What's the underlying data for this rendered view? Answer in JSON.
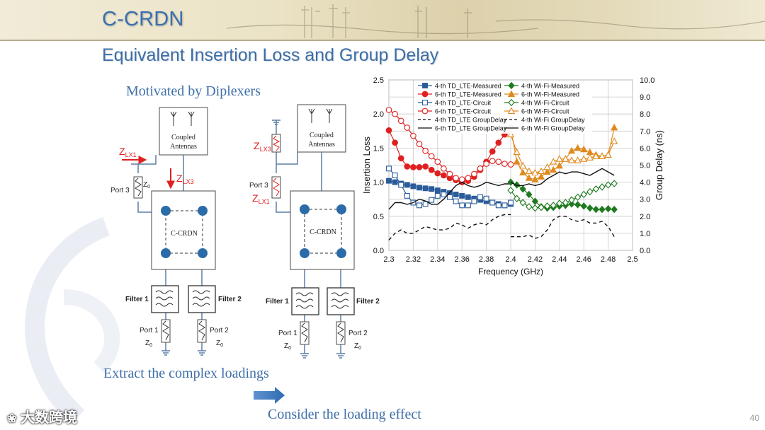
{
  "slide": {
    "title": "C-CRDN",
    "subtitle": "Equivalent Insertion Loss and Group Delay",
    "page_number": "40",
    "watermark_brand": "大数跨境"
  },
  "notes": {
    "motivated": "Motivated by Diplexers",
    "extract": "Extract the complex loadings",
    "consider": "Consider the loading effect"
  },
  "diagram_left": {
    "antenna_label_1": "Coupled",
    "antenna_label_2": "Antennas",
    "zlx1": "Z",
    "zlx1_sub": "LX1",
    "zlx3": "Z",
    "zlx3_sub": "LX3",
    "port3": "Port 3",
    "z0": "Z",
    "z0_sub": "0",
    "core_label": "C-CRDN",
    "filter1": "Filter 1",
    "filter2": "Filter 2",
    "port1": "Port 1",
    "port2": "Port 2"
  },
  "diagram_right": {
    "antenna_label_1": "Coupled",
    "antenna_label_2": "Antennas",
    "zlx3": "Z",
    "zlx3_sub": "LX3",
    "zlx1": "Z",
    "zlx1_sub": "LX1",
    "port3": "Port 3",
    "core_label": "C-CRDN",
    "filter1": "Filter 1",
    "filter2": "Filter 2",
    "port1": "Port 1",
    "port2": "Port 2",
    "z0": "Z",
    "z0_sub": "0"
  },
  "colors": {
    "accent_blue": "#3b6ea8",
    "red": "#e02020",
    "green": "#1f7a1f",
    "orange": "#e08a1e",
    "node_blue": "#2b6ca8",
    "line_blue": "#5b7fa6"
  },
  "chart_data": {
    "type": "line",
    "xlabel": "Frequency (GHz)",
    "ylabel": "Insertion Loss",
    "y2label": "Group Delay (ns)",
    "xlim": [
      2.3,
      2.5
    ],
    "ylim": [
      0,
      2.5
    ],
    "y2lim": [
      0,
      10
    ],
    "xticks": [
      "2.3",
      "2.32",
      "2.34",
      "2.36",
      "2.38",
      "2.4",
      "2.42",
      "2.44",
      "2.46",
      "2.48",
      "2.5"
    ],
    "yticks": [
      "0.0",
      "0.5",
      "1.0",
      "1.5",
      "2.0",
      "2.5"
    ],
    "y2ticks": [
      "0.0",
      "1.0",
      "2.0",
      "3.0",
      "4.0",
      "5.0",
      "6.0",
      "7.0",
      "8.0",
      "9.0",
      "10.0"
    ],
    "grid": true,
    "legend_position": "top",
    "series": [
      {
        "name": "4-th TD_LTE-Measured",
        "axis": "left",
        "color": "#2a5c9a",
        "marker": "square-filled",
        "x": [
          2.3,
          2.305,
          2.31,
          2.315,
          2.32,
          2.325,
          2.33,
          2.335,
          2.34,
          2.345,
          2.35,
          2.355,
          2.36,
          2.365,
          2.37,
          2.375,
          2.38,
          2.385,
          2.39,
          2.395,
          2.4
        ],
        "y": [
          1.02,
          1.0,
          0.98,
          0.96,
          0.94,
          0.92,
          0.91,
          0.9,
          0.88,
          0.86,
          0.84,
          0.82,
          0.8,
          0.78,
          0.76,
          0.74,
          0.72,
          0.7,
          0.68,
          0.66,
          0.68
        ]
      },
      {
        "name": "6-th TD_LTE-Measured",
        "axis": "left",
        "color": "#e02020",
        "marker": "circle-filled",
        "x": [
          2.3,
          2.305,
          2.31,
          2.315,
          2.32,
          2.325,
          2.33,
          2.335,
          2.34,
          2.345,
          2.35,
          2.355,
          2.36,
          2.365,
          2.37,
          2.375,
          2.38,
          2.385,
          2.39,
          2.395,
          2.4
        ],
        "y": [
          1.76,
          1.58,
          1.35,
          1.23,
          1.22,
          1.22,
          1.23,
          1.18,
          1.13,
          1.1,
          1.06,
          1.03,
          1.0,
          1.02,
          1.08,
          1.18,
          1.3,
          1.45,
          1.58,
          1.7,
          1.8
        ]
      },
      {
        "name": "4-th TD_LTE-Circuit",
        "axis": "left",
        "color": "#2a5c9a",
        "marker": "square-open",
        "x": [
          2.3,
          2.305,
          2.31,
          2.315,
          2.32,
          2.325,
          2.33,
          2.335,
          2.34,
          2.345,
          2.35,
          2.355,
          2.36,
          2.365,
          2.37,
          2.375,
          2.38,
          2.385,
          2.39,
          2.395,
          2.4
        ],
        "y": [
          1.2,
          1.1,
          0.96,
          0.8,
          0.7,
          0.66,
          0.68,
          0.74,
          0.8,
          0.82,
          0.78,
          0.72,
          0.66,
          0.66,
          0.72,
          0.78,
          0.76,
          0.7,
          0.66,
          0.66,
          0.7
        ]
      },
      {
        "name": "6-th TD_LTE-Circuit",
        "axis": "left",
        "color": "#e02020",
        "marker": "circle-open",
        "x": [
          2.3,
          2.305,
          2.31,
          2.315,
          2.32,
          2.325,
          2.33,
          2.335,
          2.34,
          2.345,
          2.35,
          2.355,
          2.36,
          2.365,
          2.37,
          2.375,
          2.38,
          2.385,
          2.39,
          2.395,
          2.4
        ],
        "y": [
          2.06,
          2.0,
          1.9,
          1.8,
          1.68,
          1.56,
          1.46,
          1.38,
          1.3,
          1.2,
          1.12,
          1.06,
          1.04,
          1.06,
          1.12,
          1.2,
          1.27,
          1.31,
          1.3,
          1.27,
          1.26
        ]
      },
      {
        "name": "4-th TD_LTE GroupDelay",
        "axis": "right",
        "color": "#111111",
        "marker": "none",
        "dash": "dashed",
        "x": [
          2.3,
          2.305,
          2.31,
          2.315,
          2.32,
          2.325,
          2.33,
          2.335,
          2.34,
          2.345,
          2.35,
          2.355,
          2.36,
          2.365,
          2.37,
          2.375,
          2.38,
          2.385,
          2.39,
          2.395,
          2.4
        ],
        "y": [
          0.6,
          1.0,
          1.2,
          1.0,
          1.0,
          1.2,
          1.4,
          1.3,
          1.2,
          1.2,
          1.3,
          1.6,
          1.5,
          1.3,
          1.5,
          1.6,
          1.5,
          1.8,
          2.0,
          2.1,
          2.1
        ]
      },
      {
        "name": "6-th TD_LTE GroupDelay",
        "axis": "right",
        "color": "#111111",
        "marker": "none",
        "dash": "solid",
        "x": [
          2.3,
          2.305,
          2.31,
          2.315,
          2.32,
          2.325,
          2.33,
          2.335,
          2.34,
          2.345,
          2.35,
          2.355,
          2.36,
          2.365,
          2.37,
          2.375,
          2.38,
          2.385,
          2.39,
          2.395,
          2.4
        ],
        "y": [
          2.4,
          2.8,
          2.8,
          2.7,
          2.8,
          3.0,
          2.9,
          2.7,
          2.7,
          3.0,
          3.4,
          3.8,
          4.0,
          3.8,
          3.7,
          3.8,
          4.0,
          3.9,
          3.8,
          3.9,
          3.9
        ]
      },
      {
        "name": "4-th Wi-Fi-Measured",
        "axis": "left",
        "color": "#1f7a1f",
        "marker": "diamond-filled",
        "x": [
          2.4,
          2.405,
          2.41,
          2.415,
          2.42,
          2.425,
          2.43,
          2.435,
          2.44,
          2.445,
          2.45,
          2.455,
          2.46,
          2.465,
          2.47,
          2.475,
          2.48,
          2.485
        ],
        "y": [
          1.0,
          0.96,
          0.9,
          0.82,
          0.72,
          0.64,
          0.62,
          0.63,
          0.65,
          0.66,
          0.68,
          0.67,
          0.65,
          0.62,
          0.6,
          0.6,
          0.61,
          0.6
        ]
      },
      {
        "name": "6-th Wi-Fi-Measured",
        "axis": "left",
        "color": "#e08a1e",
        "marker": "triangle-filled",
        "x": [
          2.4,
          2.405,
          2.41,
          2.415,
          2.42,
          2.425,
          2.43,
          2.435,
          2.44,
          2.445,
          2.45,
          2.455,
          2.46,
          2.465,
          2.47,
          2.475,
          2.48,
          2.485
        ],
        "y": [
          1.8,
          1.3,
          1.14,
          1.06,
          1.04,
          1.08,
          1.15,
          1.18,
          1.24,
          1.34,
          1.46,
          1.5,
          1.48,
          1.44,
          1.4,
          1.38,
          1.4,
          1.8
        ]
      },
      {
        "name": "4-th Wi-Fi-Circuit",
        "axis": "left",
        "color": "#1f7a1f",
        "marker": "diamond-open",
        "x": [
          2.4,
          2.405,
          2.41,
          2.415,
          2.42,
          2.425,
          2.43,
          2.435,
          2.44,
          2.445,
          2.45,
          2.455,
          2.46,
          2.465,
          2.47,
          2.475,
          2.48,
          2.485
        ],
        "y": [
          0.88,
          0.76,
          0.7,
          0.64,
          0.62,
          0.63,
          0.65,
          0.66,
          0.69,
          0.7,
          0.74,
          0.78,
          0.82,
          0.86,
          0.9,
          0.93,
          0.96,
          0.98
        ]
      },
      {
        "name": "6-th Wi-Fi-Circuit",
        "axis": "left",
        "color": "#e08a1e",
        "marker": "triangle-open",
        "x": [
          2.4,
          2.405,
          2.41,
          2.415,
          2.42,
          2.425,
          2.43,
          2.435,
          2.44,
          2.445,
          2.45,
          2.455,
          2.46,
          2.465,
          2.47,
          2.475,
          2.48,
          2.485
        ],
        "y": [
          1.7,
          1.44,
          1.24,
          1.16,
          1.14,
          1.16,
          1.22,
          1.3,
          1.34,
          1.34,
          1.32,
          1.32,
          1.34,
          1.36,
          1.38,
          1.38,
          1.4,
          1.6
        ]
      },
      {
        "name": "4-th Wi-Fi GroupDelay",
        "axis": "right",
        "color": "#111111",
        "marker": "none",
        "dash": "dashed",
        "x": [
          2.4,
          2.405,
          2.41,
          2.415,
          2.42,
          2.425,
          2.43,
          2.435,
          2.44,
          2.445,
          2.45,
          2.455,
          2.46,
          2.465,
          2.47,
          2.475,
          2.48,
          2.485
        ],
        "y": [
          0.8,
          0.8,
          0.8,
          0.9,
          0.7,
          0.8,
          1.2,
          1.8,
          2.0,
          2.0,
          1.8,
          1.7,
          1.8,
          1.6,
          1.6,
          1.7,
          1.4,
          0.8
        ]
      },
      {
        "name": "6-th Wi-Fi GroupDelay",
        "axis": "right",
        "color": "#111111",
        "marker": "none",
        "dash": "solid",
        "x": [
          2.4,
          2.405,
          2.41,
          2.415,
          2.42,
          2.425,
          2.43,
          2.435,
          2.44,
          2.445,
          2.45,
          2.455,
          2.46,
          2.465,
          2.47,
          2.475,
          2.48,
          2.485
        ],
        "y": [
          4.0,
          3.8,
          3.8,
          3.9,
          3.8,
          3.9,
          4.2,
          4.4,
          4.6,
          4.5,
          4.6,
          4.6,
          4.5,
          4.4,
          4.6,
          4.8,
          4.6,
          4.4
        ]
      }
    ]
  }
}
